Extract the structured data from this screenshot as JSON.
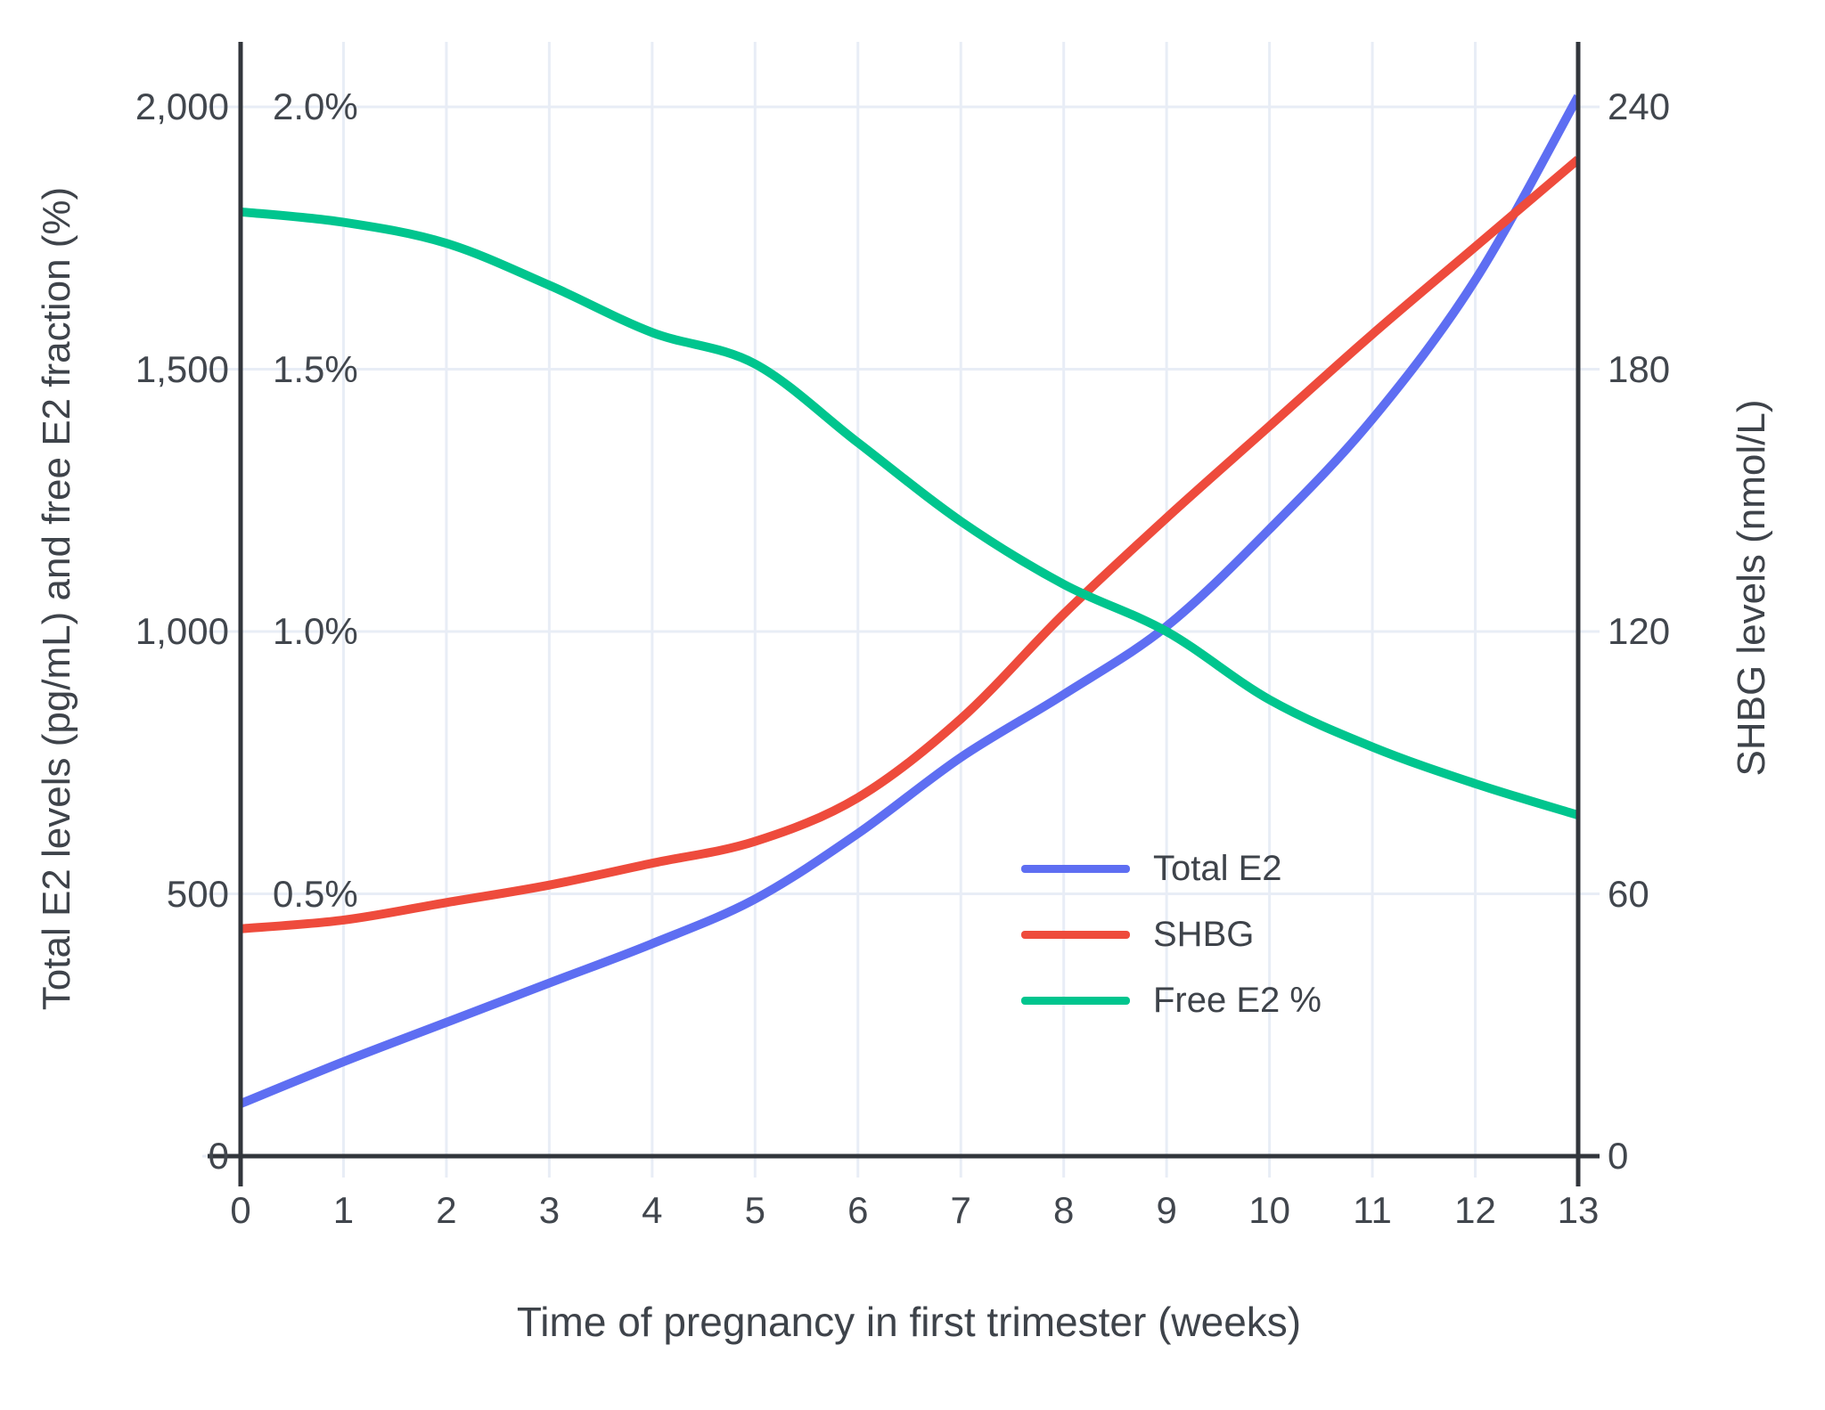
{
  "chart_data": {
    "type": "line",
    "title": "",
    "xlabel": "Time of pregnancy in first trimester (weeks)",
    "x": [
      0,
      1,
      2,
      3,
      4,
      5,
      6,
      7,
      8,
      9,
      10,
      11,
      12,
      13
    ],
    "x_tick_labels": [
      "0",
      "1",
      "2",
      "3",
      "4",
      "5",
      "6",
      "7",
      "8",
      "9",
      "10",
      "11",
      "12",
      "13"
    ],
    "grid": true,
    "legend_position": "middle-right",
    "left_axis": {
      "label": "Total E2 levels (pg/mL) and free E2 fraction (%)",
      "ticks": [
        {
          "value": 0,
          "label": "0"
        },
        {
          "value": 500,
          "label": "500"
        },
        {
          "value": 1000,
          "label": "1,000"
        },
        {
          "value": 1500,
          "label": "1,500"
        },
        {
          "value": 2000,
          "label": "2,000"
        }
      ],
      "pct_ticks": [
        {
          "value": 0.5,
          "label": "0.5%"
        },
        {
          "value": 1.0,
          "label": "1.0%"
        },
        {
          "value": 1.5,
          "label": "1.5%"
        },
        {
          "value": 2.0,
          "label": "2.0%"
        }
      ],
      "range_pgml": [
        0,
        2125
      ],
      "range_pct": [
        0,
        2.125
      ]
    },
    "right_axis": {
      "label": "SHBG levels (nmol/L)",
      "ticks": [
        {
          "value": 0,
          "label": "0"
        },
        {
          "value": 60,
          "label": "60"
        },
        {
          "value": 120,
          "label": "120"
        },
        {
          "value": 180,
          "label": "180"
        },
        {
          "value": 240,
          "label": "240"
        }
      ],
      "range": [
        0,
        255
      ]
    },
    "series": [
      {
        "name": "Total E2",
        "color": "#5e6ef2",
        "axis": "pgml",
        "values": [
          100,
          180,
          255,
          330,
          405,
          490,
          615,
          760,
          880,
          1010,
          1195,
          1405,
          1670,
          2020
        ]
      },
      {
        "name": "SHBG",
        "color": "#ee4b3c",
        "axis": "nmol",
        "values": [
          52,
          54,
          58,
          62,
          67,
          72,
          82,
          100,
          124,
          146,
          167,
          188,
          208,
          228
        ]
      },
      {
        "name": "Free E2 %",
        "color": "#00c58e",
        "axis": "pct",
        "values": [
          1.8,
          1.78,
          1.74,
          1.66,
          1.57,
          1.51,
          1.36,
          1.21,
          1.09,
          1.0,
          0.87,
          0.78,
          0.71,
          0.65
        ]
      }
    ],
    "colors": {
      "grid": "#e8edf6",
      "axis_line": "#32363c",
      "tick_text": "#41464d"
    }
  }
}
